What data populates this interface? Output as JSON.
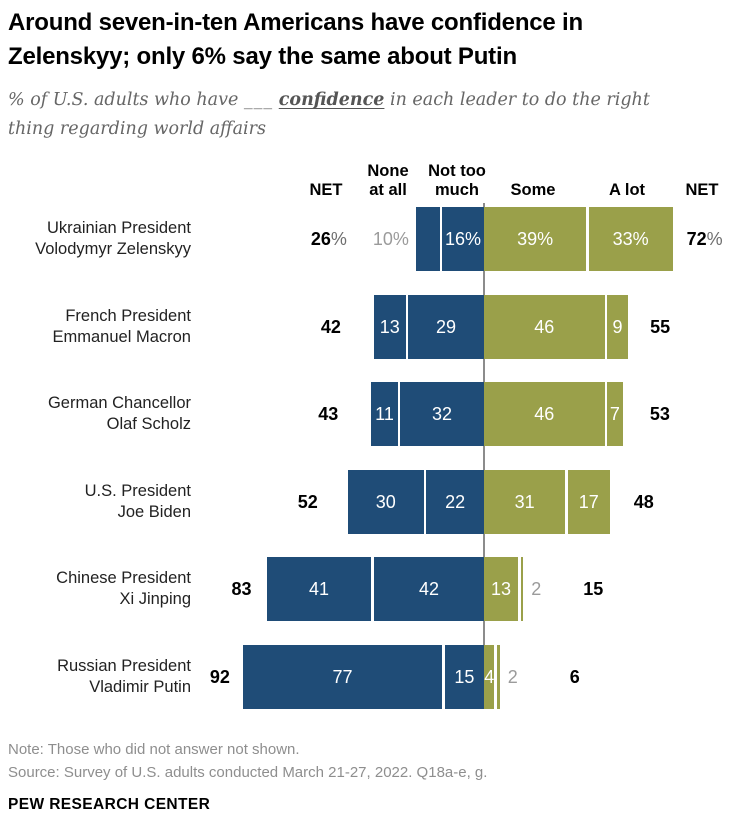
{
  "title_lines": [
    "Around seven-in-ten Americans have confidence in",
    "Zelenskyy; only 6% say the same about Putin"
  ],
  "subtitle": {
    "pre": "% of U.S. adults who have",
    "blank": "___",
    "emphasis": "confidence",
    "post": "in each leader to do the right",
    "line2": "thing regarding world affairs"
  },
  "chart_data": {
    "type": "bar",
    "variant": "diverging-stacked-horizontal",
    "units": "% of U.S. adults",
    "headers": [
      {
        "id": "net-left",
        "lines": [
          "NET"
        ]
      },
      {
        "id": "none-at-all",
        "lines": [
          "None",
          "at all"
        ]
      },
      {
        "id": "not-too-much",
        "lines": [
          "Not too",
          "much"
        ]
      },
      {
        "id": "some",
        "lines": [
          "Some"
        ]
      },
      {
        "id": "a-lot",
        "lines": [
          "A lot"
        ]
      },
      {
        "id": "net-right",
        "lines": [
          "NET"
        ]
      }
    ],
    "rows": [
      {
        "name_lines": [
          "Ukrainian President",
          "Volodymyr Zelenskyy"
        ],
        "net_left": "26",
        "net_left_suffix": "%",
        "none_at_all": 10,
        "not_too_much": 16,
        "some": 39,
        "a_lot": 33,
        "net_right": "72",
        "net_right_suffix": "%",
        "seg_labels": {
          "none_at_all": "10%",
          "not_too_much": "16%",
          "some": "39%",
          "a_lot": "33%"
        },
        "outside": {
          "none_at_all": true,
          "a_lot": false
        }
      },
      {
        "name_lines": [
          "French President",
          "Emmanuel Macron"
        ],
        "net_left": "42",
        "net_left_suffix": "",
        "none_at_all": 13,
        "not_too_much": 29,
        "some": 46,
        "a_lot": 9,
        "net_right": "55",
        "net_right_suffix": "",
        "seg_labels": {
          "none_at_all": "13",
          "not_too_much": "29",
          "some": "46",
          "a_lot": "9"
        },
        "outside": {
          "none_at_all": false,
          "a_lot": false
        }
      },
      {
        "name_lines": [
          "German Chancellor",
          "Olaf Scholz"
        ],
        "net_left": "43",
        "net_left_suffix": "",
        "none_at_all": 11,
        "not_too_much": 32,
        "some": 46,
        "a_lot": 7,
        "net_right": "53",
        "net_right_suffix": "",
        "seg_labels": {
          "none_at_all": "11",
          "not_too_much": "32",
          "some": "46",
          "a_lot": "7"
        },
        "outside": {
          "none_at_all": false,
          "a_lot": false
        }
      },
      {
        "name_lines": [
          "U.S. President",
          "Joe Biden"
        ],
        "net_left": "52",
        "net_left_suffix": "",
        "none_at_all": 30,
        "not_too_much": 22,
        "some": 31,
        "a_lot": 17,
        "net_right": "48",
        "net_right_suffix": "",
        "seg_labels": {
          "none_at_all": "30",
          "not_too_much": "22",
          "some": "31",
          "a_lot": "17"
        },
        "outside": {
          "none_at_all": false,
          "a_lot": false
        }
      },
      {
        "name_lines": [
          "Chinese President",
          "Xi Jinping"
        ],
        "net_left": "83",
        "net_left_suffix": "",
        "none_at_all": 41,
        "not_too_much": 42,
        "some": 13,
        "a_lot": 2,
        "net_right": "15",
        "net_right_suffix": "",
        "seg_labels": {
          "none_at_all": "41",
          "not_too_much": "42",
          "some": "13",
          "a_lot": "2"
        },
        "outside": {
          "none_at_all": false,
          "a_lot": true
        }
      },
      {
        "name_lines": [
          "Russian President",
          "Vladimir Putin"
        ],
        "net_left": "92",
        "net_left_suffix": "",
        "none_at_all": 77,
        "not_too_much": 15,
        "some": 4,
        "a_lot": 2,
        "net_right": "6",
        "net_right_suffix": "",
        "seg_labels": {
          "none_at_all": "77",
          "not_too_much": "15",
          "some": "4",
          "a_lot": "2"
        },
        "outside": {
          "none_at_all": false,
          "a_lot": true
        }
      }
    ]
  },
  "colors": {
    "bar_negative_blue": "#1F4C77",
    "bar_positive_green": "#9AA04A",
    "outside_label_gray": "#9B9B9B",
    "axis_line_gray": "#8C8C8C",
    "net_suffix_gray": "#6E6E6E"
  },
  "note": "Note: Those who did not answer not shown.",
  "source": "Source: Survey of U.S. adults conducted March 21-27, 2022. Q18a-e, g.",
  "brand": "PEW RESEARCH CENTER"
}
